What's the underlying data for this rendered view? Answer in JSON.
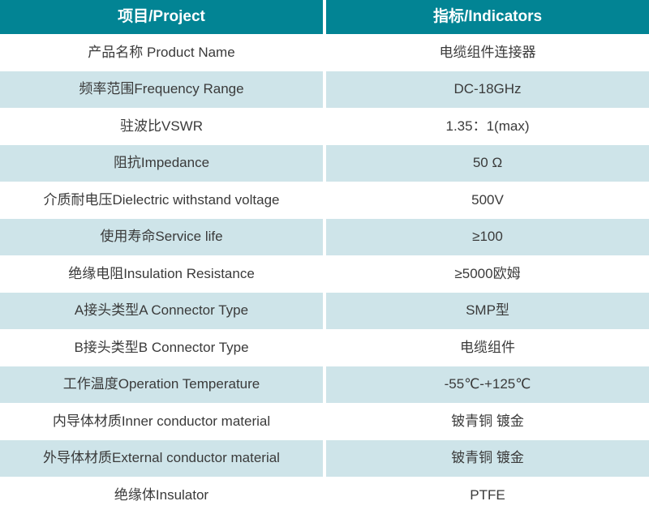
{
  "colors": {
    "header_bg": "#028494",
    "header_text": "#ffffff",
    "row_bg": "#ffffff",
    "row_alt_bg": "#cee4e9",
    "text": "#3a3a3a"
  },
  "table": {
    "headers": {
      "project": "项目/Project",
      "indicators": "指标/Indicators"
    },
    "rows": [
      {
        "project": "产品名称 Product Name",
        "indicator": "电缆组件连接器"
      },
      {
        "project": "频率范围Frequency Range",
        "indicator": "DC-18GHz"
      },
      {
        "project": "驻波比VSWR",
        "indicator": "1.35：1(max)"
      },
      {
        "project": "阻抗Impedance",
        "indicator": "50 Ω"
      },
      {
        "project": "介质耐电压Dielectric withstand voltage",
        "indicator": "500V"
      },
      {
        "project": "使用寿命Service life",
        "indicator": "≥100"
      },
      {
        "project": "绝缘电阻Insulation Resistance",
        "indicator": "≥5000欧姆"
      },
      {
        "project": "A接头类型A Connector Type",
        "indicator": "SMP型"
      },
      {
        "project": "B接头类型B Connector Type",
        "indicator": "电缆组件"
      },
      {
        "project": "工作温度Operation Temperature",
        "indicator": "-55℃-+125℃"
      },
      {
        "project": "内导体材质Inner conductor material",
        "indicator": "铍青铜 镀金"
      },
      {
        "project": "外导体材质External conductor material",
        "indicator": "铍青铜 镀金"
      },
      {
        "project": "绝缘体Insulator",
        "indicator": "PTFE"
      }
    ]
  }
}
